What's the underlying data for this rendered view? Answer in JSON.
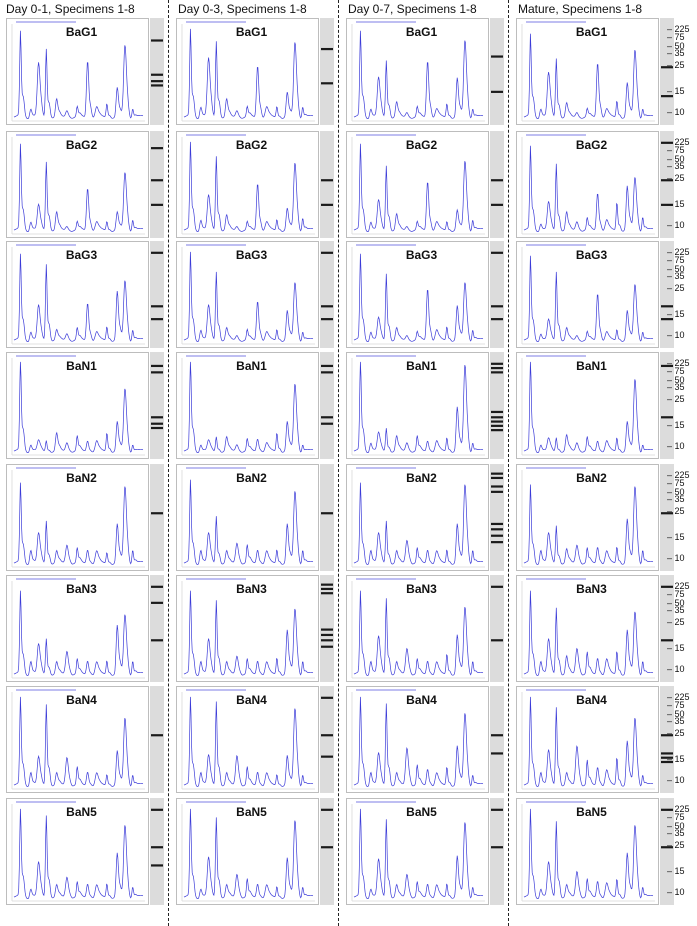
{
  "figure": {
    "columns": [
      {
        "title": "Day 0-1, Specimens 1-8"
      },
      {
        "title": "Day 0-3, Specimens 1-8"
      },
      {
        "title": "Day 0-7, Specimens 1-8"
      },
      {
        "title": "Mature, Specimens 1-8"
      }
    ],
    "rows": [
      {
        "label": "BaG1"
      },
      {
        "label": "BaG2"
      },
      {
        "label": "BaG3"
      },
      {
        "label": "BaN1"
      },
      {
        "label": "BaN2"
      },
      {
        "label": "BaN3"
      },
      {
        "label": "BaN4"
      },
      {
        "label": "BaN5"
      }
    ],
    "ladder_labels": [
      "225",
      "75",
      "50",
      "35",
      "25",
      "15",
      "10"
    ],
    "colors": {
      "trace": "#3b3bd8",
      "frame": "#bdbdbd",
      "divider": "#222222"
    }
  },
  "chart_data": {
    "type": "line",
    "title": "",
    "description_grid": "8 rows x 4 columns of electropherogram panels, each with a blue trace and a gel lane strip",
    "xlabel": "",
    "ylabel": "",
    "grid": false,
    "peak_positions": [
      0.05,
      0.13,
      0.19,
      0.25,
      0.33,
      0.41,
      0.49,
      0.57,
      0.64,
      0.72,
      0.8,
      0.86,
      0.92
    ],
    "series": [
      {
        "column": 0,
        "row": 0,
        "heights": [
          0.88,
          0.1,
          0.55,
          0.72,
          0.18,
          0.08,
          0.1,
          0.6,
          0.1,
          0.15,
          0.3,
          0.75,
          0.1
        ]
      },
      {
        "column": 1,
        "row": 0,
        "heights": [
          0.9,
          0.12,
          0.6,
          0.8,
          0.18,
          0.08,
          0.1,
          0.55,
          0.1,
          0.12,
          0.25,
          0.78,
          0.12
        ]
      },
      {
        "column": 2,
        "row": 0,
        "heights": [
          0.88,
          0.1,
          0.4,
          0.6,
          0.15,
          0.06,
          0.1,
          0.6,
          0.08,
          0.15,
          0.4,
          0.8,
          0.1
        ]
      },
      {
        "column": 3,
        "row": 0,
        "heights": [
          0.85,
          0.1,
          0.45,
          0.62,
          0.14,
          0.06,
          0.08,
          0.58,
          0.08,
          0.18,
          0.35,
          0.7,
          0.1
        ]
      },
      {
        "column": 0,
        "row": 1,
        "heights": [
          0.88,
          0.1,
          0.25,
          0.72,
          0.18,
          0.05,
          0.08,
          0.45,
          0.08,
          0.1,
          0.18,
          0.6,
          0.12
        ]
      },
      {
        "column": 1,
        "row": 1,
        "heights": [
          0.9,
          0.12,
          0.35,
          0.78,
          0.15,
          0.05,
          0.08,
          0.5,
          0.08,
          0.12,
          0.22,
          0.7,
          0.14
        ]
      },
      {
        "column": 2,
        "row": 1,
        "heights": [
          0.88,
          0.1,
          0.3,
          0.68,
          0.16,
          0.05,
          0.08,
          0.52,
          0.08,
          0.1,
          0.2,
          0.72,
          0.12
        ]
      },
      {
        "column": 3,
        "row": 1,
        "heights": [
          0.86,
          0.08,
          0.28,
          0.7,
          0.18,
          0.1,
          0.12,
          0.4,
          0.1,
          0.3,
          0.45,
          0.55,
          0.15
        ]
      },
      {
        "column": 0,
        "row": 2,
        "heights": [
          0.88,
          0.1,
          0.35,
          0.8,
          0.1,
          0.08,
          0.12,
          0.4,
          0.08,
          0.15,
          0.5,
          0.62,
          0.12
        ]
      },
      {
        "column": 1,
        "row": 2,
        "heights": [
          0.9,
          0.12,
          0.35,
          0.72,
          0.12,
          0.06,
          0.1,
          0.42,
          0.08,
          0.12,
          0.3,
          0.6,
          0.1
        ]
      },
      {
        "column": 2,
        "row": 2,
        "heights": [
          0.88,
          0.1,
          0.22,
          0.7,
          0.12,
          0.06,
          0.08,
          0.55,
          0.1,
          0.15,
          0.35,
          0.6,
          0.12
        ]
      },
      {
        "column": 3,
        "row": 2,
        "heights": [
          0.86,
          0.08,
          0.2,
          0.72,
          0.12,
          0.06,
          0.08,
          0.5,
          0.08,
          0.12,
          0.3,
          0.58,
          0.1
        ]
      },
      {
        "column": 0,
        "row": 3,
        "heights": [
          0.95,
          0.08,
          0.1,
          0.12,
          0.18,
          0.1,
          0.15,
          0.12,
          0.1,
          0.2,
          0.3,
          0.65,
          0.08
        ]
      },
      {
        "column": 1,
        "row": 3,
        "heights": [
          0.95,
          0.08,
          0.1,
          0.16,
          0.14,
          0.08,
          0.12,
          0.14,
          0.08,
          0.2,
          0.3,
          0.7,
          0.08
        ]
      },
      {
        "column": 2,
        "row": 3,
        "heights": [
          0.95,
          0.1,
          0.18,
          0.25,
          0.15,
          0.1,
          0.15,
          0.12,
          0.1,
          0.15,
          0.45,
          0.9,
          0.1
        ]
      },
      {
        "column": 3,
        "row": 3,
        "heights": [
          0.95,
          0.08,
          0.12,
          0.15,
          0.16,
          0.1,
          0.14,
          0.12,
          0.1,
          0.15,
          0.3,
          0.75,
          0.08
        ]
      },
      {
        "column": 0,
        "row": 4,
        "heights": [
          0.82,
          0.15,
          0.3,
          0.45,
          0.12,
          0.2,
          0.15,
          0.15,
          0.12,
          0.12,
          0.4,
          0.8,
          0.15
        ]
      },
      {
        "column": 1,
        "row": 4,
        "heights": [
          0.85,
          0.15,
          0.3,
          0.5,
          0.12,
          0.22,
          0.18,
          0.15,
          0.12,
          0.15,
          0.4,
          0.75,
          0.15
        ]
      },
      {
        "column": 2,
        "row": 4,
        "heights": [
          0.82,
          0.15,
          0.3,
          0.45,
          0.12,
          0.25,
          0.15,
          0.15,
          0.12,
          0.15,
          0.4,
          0.82,
          0.15
        ]
      },
      {
        "column": 3,
        "row": 4,
        "heights": [
          0.8,
          0.15,
          0.3,
          0.4,
          0.14,
          0.2,
          0.15,
          0.18,
          0.12,
          0.18,
          0.45,
          0.8,
          0.15
        ]
      },
      {
        "column": 0,
        "row": 5,
        "heights": [
          0.85,
          0.15,
          0.3,
          0.38,
          0.12,
          0.25,
          0.15,
          0.15,
          0.12,
          0.15,
          0.5,
          0.62,
          0.15
        ]
      },
      {
        "column": 1,
        "row": 5,
        "heights": [
          0.85,
          0.15,
          0.35,
          0.78,
          0.12,
          0.2,
          0.15,
          0.15,
          0.12,
          0.18,
          0.45,
          0.68,
          0.15
        ]
      },
      {
        "column": 2,
        "row": 5,
        "heights": [
          0.85,
          0.15,
          0.38,
          0.8,
          0.12,
          0.28,
          0.15,
          0.15,
          0.12,
          0.22,
          0.4,
          0.7,
          0.15
        ]
      },
      {
        "column": 3,
        "row": 5,
        "heights": [
          0.85,
          0.15,
          0.35,
          0.7,
          0.18,
          0.28,
          0.22,
          0.18,
          0.15,
          0.25,
          0.45,
          0.65,
          0.15
        ]
      },
      {
        "column": 0,
        "row": 6,
        "heights": [
          0.9,
          0.15,
          0.28,
          0.85,
          0.12,
          0.3,
          0.18,
          0.15,
          0.12,
          0.12,
          0.35,
          0.7,
          0.12
        ]
      },
      {
        "column": 1,
        "row": 6,
        "heights": [
          0.9,
          0.15,
          0.3,
          0.88,
          0.12,
          0.32,
          0.18,
          0.15,
          0.12,
          0.12,
          0.3,
          0.8,
          0.12
        ]
      },
      {
        "column": 2,
        "row": 6,
        "heights": [
          0.9,
          0.15,
          0.32,
          0.86,
          0.12,
          0.4,
          0.2,
          0.18,
          0.12,
          0.2,
          0.4,
          0.75,
          0.12
        ]
      },
      {
        "column": 3,
        "row": 6,
        "heights": [
          0.9,
          0.15,
          0.35,
          0.82,
          0.12,
          0.42,
          0.25,
          0.2,
          0.15,
          0.3,
          0.45,
          0.7,
          0.12
        ]
      },
      {
        "column": 0,
        "row": 7,
        "heights": [
          0.9,
          0.1,
          0.35,
          0.86,
          0.12,
          0.22,
          0.15,
          0.15,
          0.12,
          0.15,
          0.45,
          0.75,
          0.12
        ]
      },
      {
        "column": 1,
        "row": 7,
        "heights": [
          0.9,
          0.1,
          0.4,
          0.84,
          0.12,
          0.25,
          0.18,
          0.15,
          0.12,
          0.12,
          0.4,
          0.8,
          0.12
        ]
      },
      {
        "column": 2,
        "row": 7,
        "heights": [
          0.9,
          0.1,
          0.38,
          0.82,
          0.12,
          0.25,
          0.15,
          0.15,
          0.12,
          0.15,
          0.42,
          0.78,
          0.12
        ]
      },
      {
        "column": 3,
        "row": 7,
        "heights": [
          0.9,
          0.1,
          0.35,
          0.8,
          0.12,
          0.28,
          0.18,
          0.18,
          0.14,
          0.2,
          0.45,
          0.75,
          0.12
        ]
      }
    ],
    "gel_bands": [
      {
        "column": 0,
        "row": 0,
        "bands": [
          0.2,
          0.52,
          0.58,
          0.62
        ]
      },
      {
        "column": 1,
        "row": 0,
        "bands": [
          0.28,
          0.6
        ]
      },
      {
        "column": 2,
        "row": 0,
        "bands": [
          0.35,
          0.68
        ]
      },
      {
        "column": 3,
        "row": 0,
        "bands": [
          0.45,
          0.72
        ]
      },
      {
        "column": 0,
        "row": 1,
        "bands": [
          0.15,
          0.45,
          0.68
        ]
      },
      {
        "column": 1,
        "row": 1,
        "bands": [
          0.45,
          0.68
        ]
      },
      {
        "column": 2,
        "row": 1,
        "bands": [
          0.45,
          0.68
        ]
      },
      {
        "column": 3,
        "row": 1,
        "bands": [
          0.1,
          0.45,
          0.68
        ]
      },
      {
        "column": 0,
        "row": 2,
        "bands": [
          0.1,
          0.6,
          0.72
        ]
      },
      {
        "column": 1,
        "row": 2,
        "bands": [
          0.1,
          0.6,
          0.72
        ]
      },
      {
        "column": 2,
        "row": 2,
        "bands": [
          0.1,
          0.6,
          0.72
        ]
      },
      {
        "column": 3,
        "row": 2,
        "bands": [
          0.6,
          0.72
        ]
      },
      {
        "column": 0,
        "row": 3,
        "bands": [
          0.12,
          0.18,
          0.6,
          0.66,
          0.7
        ]
      },
      {
        "column": 1,
        "row": 3,
        "bands": [
          0.12,
          0.18,
          0.6,
          0.66
        ]
      },
      {
        "column": 2,
        "row": 3,
        "bands": [
          0.1,
          0.14,
          0.18,
          0.55,
          0.6,
          0.64,
          0.68,
          0.72
        ]
      },
      {
        "column": 3,
        "row": 3,
        "bands": [
          0.12,
          0.6
        ]
      },
      {
        "column": 0,
        "row": 4,
        "bands": [
          0.45
        ]
      },
      {
        "column": 1,
        "row": 4,
        "bands": [
          0.45
        ]
      },
      {
        "column": 2,
        "row": 4,
        "bands": [
          0.08,
          0.12,
          0.2,
          0.25,
          0.55,
          0.6,
          0.66,
          0.72
        ]
      },
      {
        "column": 3,
        "row": 4,
        "bands": [
          0.45
        ]
      },
      {
        "column": 0,
        "row": 5,
        "bands": [
          0.1,
          0.25,
          0.6
        ]
      },
      {
        "column": 1,
        "row": 5,
        "bands": [
          0.08,
          0.12,
          0.16,
          0.5,
          0.55,
          0.6,
          0.66
        ]
      },
      {
        "column": 2,
        "row": 5,
        "bands": [
          0.1,
          0.6
        ]
      },
      {
        "column": 3,
        "row": 5,
        "bands": [
          0.1,
          0.6
        ]
      },
      {
        "column": 0,
        "row": 6,
        "bands": [
          0.45
        ]
      },
      {
        "column": 1,
        "row": 6,
        "bands": [
          0.1,
          0.45,
          0.65
        ]
      },
      {
        "column": 2,
        "row": 6,
        "bands": [
          0.45,
          0.62
        ]
      },
      {
        "column": 3,
        "row": 6,
        "bands": [
          0.45,
          0.62,
          0.66,
          0.7
        ]
      },
      {
        "column": 0,
        "row": 7,
        "bands": [
          0.1,
          0.45,
          0.62
        ]
      },
      {
        "column": 1,
        "row": 7,
        "bands": [
          0.1,
          0.45
        ]
      },
      {
        "column": 2,
        "row": 7,
        "bands": [
          0.1,
          0.45
        ]
      },
      {
        "column": 3,
        "row": 7,
        "bands": [
          0.1,
          0.45
        ]
      }
    ]
  }
}
